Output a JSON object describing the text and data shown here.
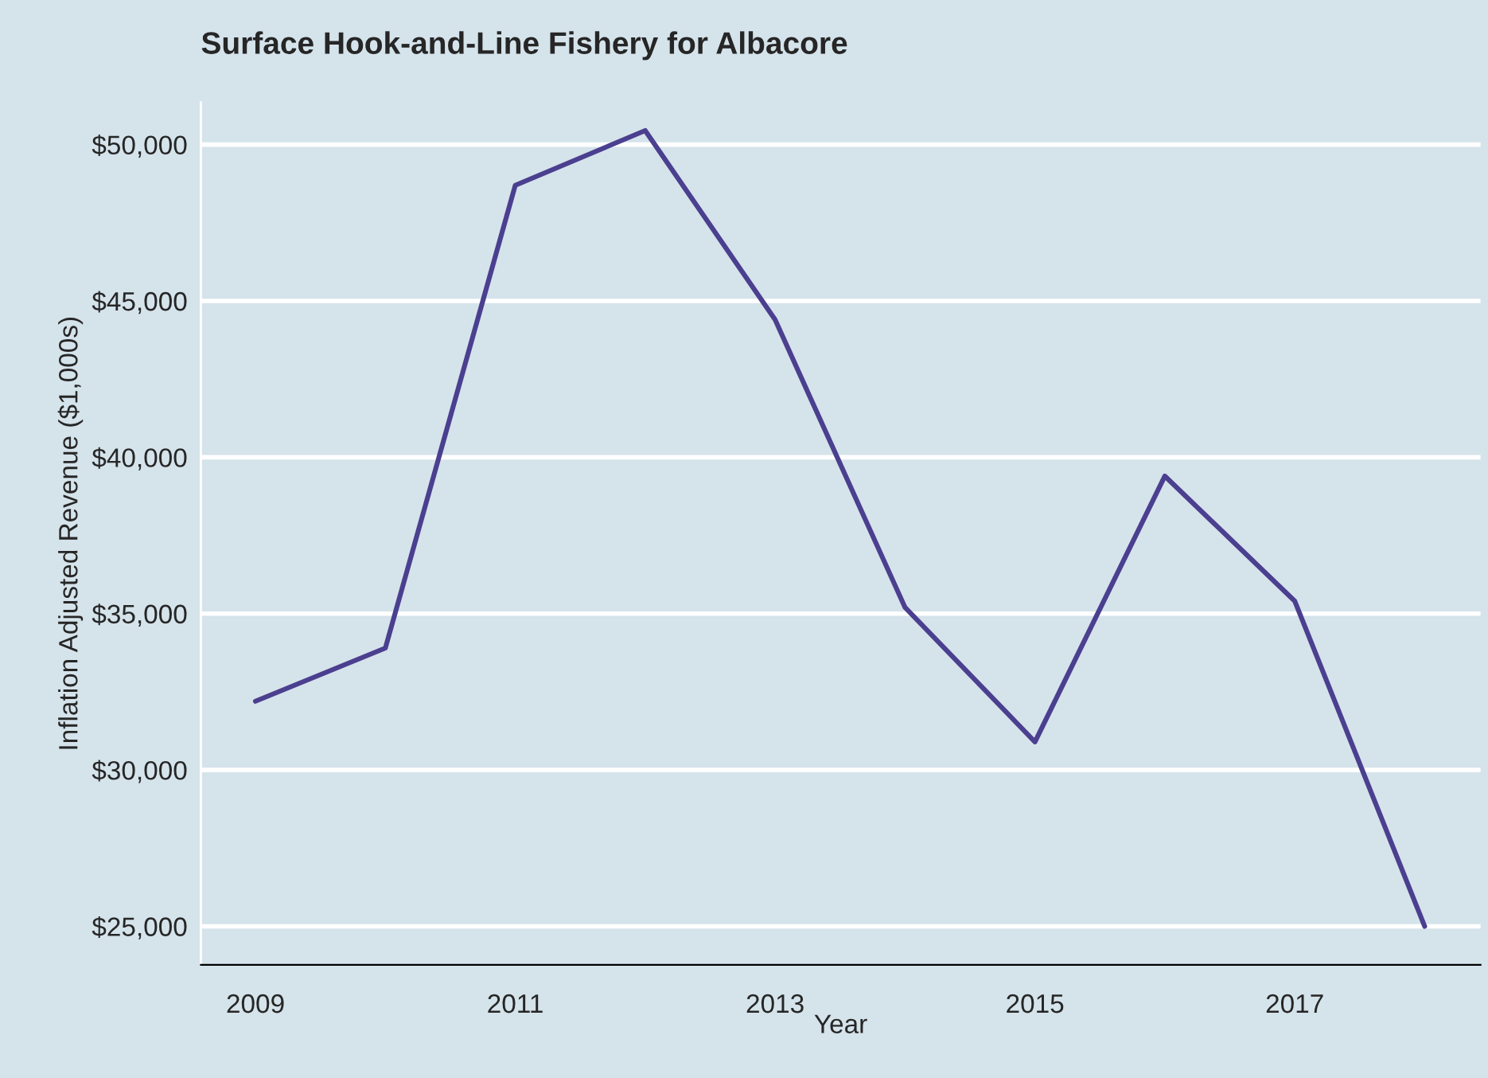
{
  "chart_data": {
    "type": "line",
    "title": "Surface Hook-and-Line Fishery for Albacore",
    "xlabel": "Year",
    "ylabel": "Inflation Adjusted Revenue ($1,000s)",
    "x": [
      2009,
      2010,
      2011,
      2012,
      2013,
      2014,
      2015,
      2016,
      2017,
      2018
    ],
    "series": [
      {
        "color": "#4b3f8f",
        "values": [
          32200,
          33900,
          48700,
          50450,
          44400,
          35200,
          30900,
          39400,
          35400,
          25000
        ]
      }
    ],
    "xlim": [
      2008.58,
      2018.43
    ],
    "xticks": [
      2009,
      2011,
      2013,
      2015,
      2017
    ],
    "ylim": [
      23770,
      51350
    ],
    "yticks": [
      {
        "value": 25000,
        "label": "$25,000"
      },
      {
        "value": 30000,
        "label": "$30,000"
      },
      {
        "value": 35000,
        "label": "$35,000"
      },
      {
        "value": 40000,
        "label": "$40,000"
      },
      {
        "value": 45000,
        "label": "$45,000"
      },
      {
        "value": 50000,
        "label": "$50,000"
      }
    ],
    "grid": "y",
    "marker": "none",
    "line_style": "solid"
  }
}
